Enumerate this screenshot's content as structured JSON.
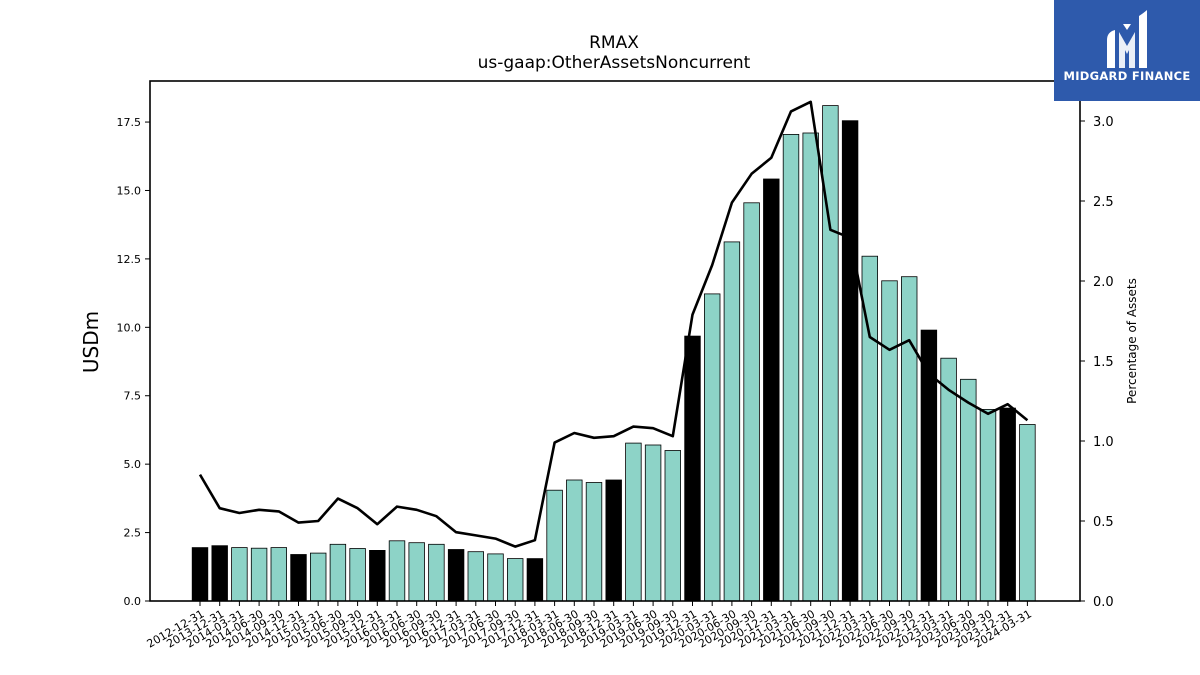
{
  "chart_data": {
    "type": "bar",
    "title": "RMAX",
    "subtitle": "us-gaap:OtherAssetsNoncurrent",
    "ylabel": "USDm",
    "y2label": "Percentage of Assets",
    "ylim": [
      0,
      19.0
    ],
    "y2lim": [
      0,
      3.25
    ],
    "yticks": [
      "0.0",
      "2.5",
      "5.0",
      "7.5",
      "10.0",
      "12.5",
      "15.0",
      "17.5"
    ],
    "y2ticks": [
      "0.0",
      "0.5",
      "1.0",
      "1.5",
      "2.0",
      "2.5",
      "3.0"
    ],
    "bar_color": "#8dd3c7",
    "year_end_color": "#000000",
    "line_color": "#000000",
    "categories": [
      "2012-12-31",
      "2013-12-31",
      "2014-03-31",
      "2014-06-30",
      "2014-09-30",
      "2014-12-31",
      "2015-03-31",
      "2015-06-30",
      "2015-09-30",
      "2015-12-31",
      "2016-03-31",
      "2016-06-30",
      "2016-09-30",
      "2016-12-31",
      "2017-03-31",
      "2017-06-30",
      "2017-09-30",
      "2017-12-31",
      "2018-03-31",
      "2018-06-30",
      "2018-09-30",
      "2018-12-31",
      "2019-03-31",
      "2019-06-30",
      "2019-09-30",
      "2019-12-31",
      "2020-03-31",
      "2020-06-30",
      "2020-09-30",
      "2020-12-31",
      "2021-03-31",
      "2021-06-30",
      "2021-09-30",
      "2021-12-31",
      "2022-03-31",
      "2022-06-30",
      "2022-09-30",
      "2022-12-31",
      "2023-03-31",
      "2023-06-30",
      "2023-09-30",
      "2023-12-31",
      "2024-03-31"
    ],
    "series": [
      {
        "values": [
          1.95,
          2.02,
          1.95,
          1.93,
          1.95,
          1.7,
          1.75,
          2.07,
          1.92,
          1.85,
          2.2,
          2.13,
          2.07,
          1.88,
          1.8,
          1.72,
          1.55,
          1.55,
          4.05,
          4.42,
          4.33,
          4.42,
          5.77,
          5.7,
          5.5,
          9.68,
          11.22,
          13.12,
          14.55,
          15.42,
          17.05,
          17.1,
          18.1,
          17.55,
          12.6,
          11.7,
          11.85,
          9.9,
          8.87,
          8.1,
          7.0,
          7.05,
          6.45
        ]
      },
      {
        "axis": "right",
        "values": [
          0.79,
          0.58,
          0.55,
          0.57,
          0.56,
          0.49,
          0.5,
          0.64,
          0.58,
          0.48,
          0.59,
          0.57,
          0.53,
          0.43,
          0.41,
          0.39,
          0.34,
          0.38,
          0.99,
          1.05,
          1.02,
          1.03,
          1.09,
          1.08,
          1.03,
          1.79,
          2.1,
          2.49,
          2.67,
          2.77,
          3.06,
          3.12,
          2.32,
          2.27,
          1.65,
          1.57,
          1.63,
          1.42,
          1.32,
          1.24,
          1.17,
          1.23,
          1.13
        ]
      }
    ],
    "year_end_highlight": [
      "2012-12-31",
      "2013-12-31",
      "2014-12-31",
      "2015-12-31",
      "2016-12-31",
      "2017-12-31",
      "2018-12-31",
      "2019-12-31",
      "2020-12-31",
      "2021-12-31",
      "2022-12-31",
      "2023-12-31"
    ]
  },
  "logo": {
    "text": "MIDGARD FINANCE",
    "background": "#2e5aac"
  }
}
